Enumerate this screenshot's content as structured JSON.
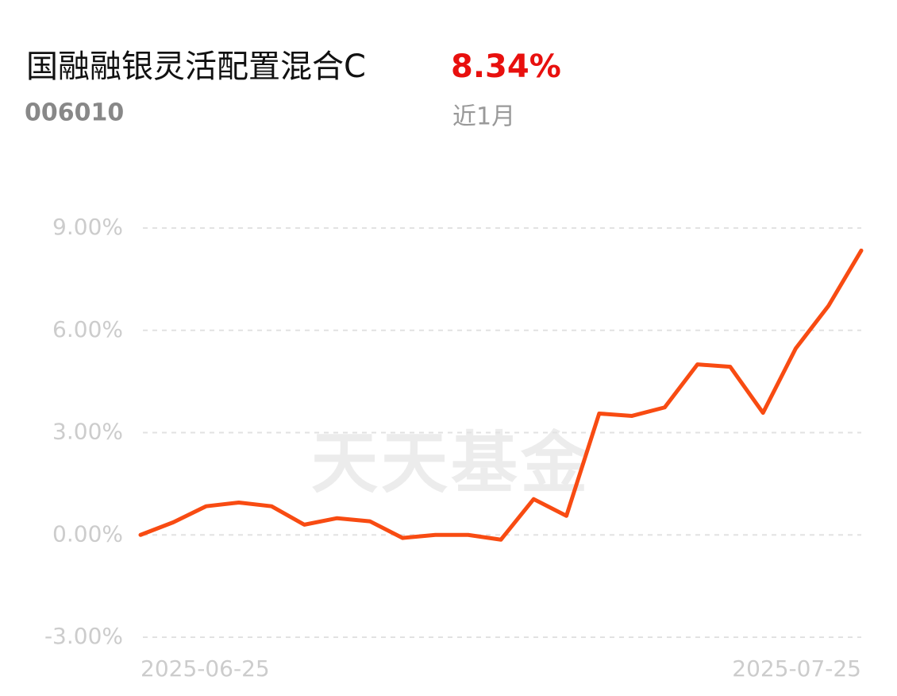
{
  "chart_data": {
    "type": "line",
    "title": "国融融银灵活配置混合C",
    "subtitle": "006010",
    "summary": {
      "value": 8.34,
      "label": "8.34%",
      "period": "近1月"
    },
    "watermark": "天天基金",
    "categories": [
      "2025-06-25",
      null,
      null,
      null,
      null,
      null,
      null,
      null,
      null,
      null,
      null,
      null,
      null,
      null,
      null,
      null,
      null,
      null,
      null,
      null,
      null,
      null,
      "2025-07-25"
    ],
    "series": [
      {
        "name": "国融融银灵活配置混合C",
        "color": "#f84b12",
        "values": [
          0,
          0.37,
          0.84,
          0.95,
          0.84,
          0.3,
          0.49,
          0.4,
          -0.09,
          0.0,
          0.0,
          -0.14,
          1.05,
          0.56,
          3.56,
          3.49,
          3.74,
          5.0,
          4.93,
          3.58,
          5.47,
          6.72,
          8.34
        ]
      }
    ],
    "ylim": [
      -3,
      9
    ],
    "yticks": [
      {
        "value": -3,
        "label": "-3.00%"
      },
      {
        "value": 0,
        "label": "0.00%"
      },
      {
        "value": 3,
        "label": "3.00%"
      },
      {
        "value": 6,
        "label": "6.00%"
      },
      {
        "value": 9,
        "label": "9.00%"
      }
    ],
    "grid": true
  }
}
